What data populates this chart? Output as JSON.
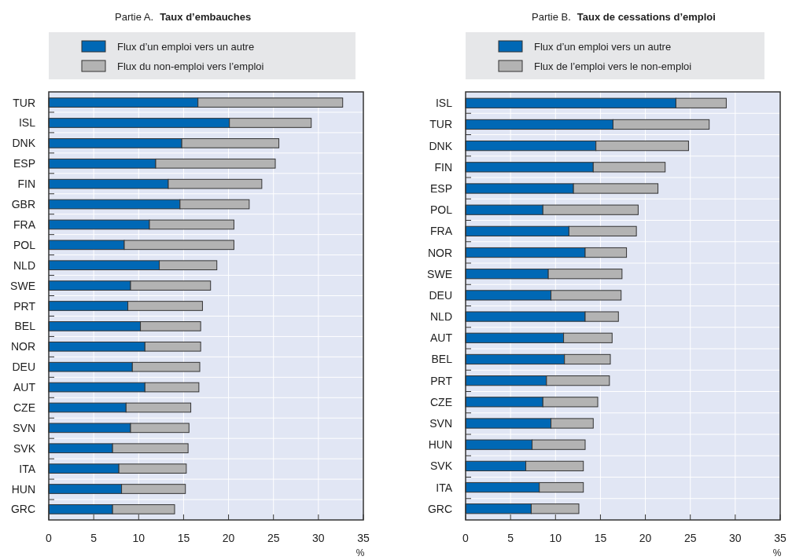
{
  "chart_data": [
    {
      "type": "bar",
      "orientation": "horizontal",
      "stacked": true,
      "subtitle": "Partie A.",
      "title": "Taux d’embauches",
      "xlabel": "%",
      "xlim": [
        0,
        35
      ],
      "xticks": [
        0,
        5,
        10,
        15,
        20,
        25,
        30,
        35
      ],
      "grid": "x",
      "legend": "top",
      "categories": [
        "TUR",
        "ISL",
        "DNK",
        "ESP",
        "FIN",
        "GBR",
        "FRA",
        "POL",
        "NLD",
        "SWE",
        "PRT",
        "BEL",
        "NOR",
        "DEU",
        "AUT",
        "CZE",
        "SVN",
        "SVK",
        "ITA",
        "HUN",
        "GRC"
      ],
      "series": [
        {
          "name": "Flux d’un emploi vers un autre",
          "color": "#0068b5",
          "values": [
            16.6,
            20.1,
            14.8,
            11.9,
            13.3,
            14.6,
            11.2,
            8.4,
            12.3,
            9.1,
            8.8,
            10.2,
            10.7,
            9.3,
            10.7,
            8.6,
            9.1,
            7.1,
            7.8,
            8.1,
            7.1
          ]
        },
        {
          "name": "Flux du non-emploi vers l’emploi",
          "color": "#b3b3b3",
          "values": [
            16.1,
            9.1,
            10.8,
            13.3,
            10.4,
            7.7,
            9.4,
            12.2,
            6.4,
            8.9,
            8.3,
            6.7,
            6.2,
            7.5,
            6.0,
            7.2,
            6.5,
            8.4,
            7.5,
            7.1,
            6.9
          ]
        }
      ]
    },
    {
      "type": "bar",
      "orientation": "horizontal",
      "stacked": true,
      "subtitle": "Partie B.",
      "title": "Taux de cessations d’emploi",
      "xlabel": "%",
      "xlim": [
        0,
        35
      ],
      "xticks": [
        0,
        5,
        10,
        15,
        20,
        25,
        30,
        35
      ],
      "grid": "x",
      "legend": "top",
      "categories": [
        "ISL",
        "TUR",
        "DNK",
        "FIN",
        "ESP",
        "POL",
        "FRA",
        "NOR",
        "SWE",
        "DEU",
        "NLD",
        "AUT",
        "BEL",
        "PRT",
        "CZE",
        "SVN",
        "HUN",
        "SVK",
        "ITA",
        "GRC"
      ],
      "series": [
        {
          "name": "Flux d’un emploi vers un autre",
          "color": "#0068b5",
          "values": [
            23.4,
            16.4,
            14.5,
            14.2,
            12.0,
            8.6,
            11.5,
            13.3,
            9.2,
            9.5,
            13.3,
            10.9,
            11.0,
            9.0,
            8.6,
            9.5,
            7.4,
            6.7,
            8.2,
            7.3
          ]
        },
        {
          "name": "Flux de l’emploi vers le non-emploi",
          "color": "#b3b3b3",
          "values": [
            5.6,
            10.7,
            10.3,
            8.0,
            9.4,
            10.6,
            7.5,
            4.6,
            8.2,
            7.8,
            3.7,
            5.4,
            5.1,
            7.0,
            6.1,
            4.7,
            5.9,
            6.4,
            4.9,
            5.3
          ]
        }
      ]
    }
  ]
}
